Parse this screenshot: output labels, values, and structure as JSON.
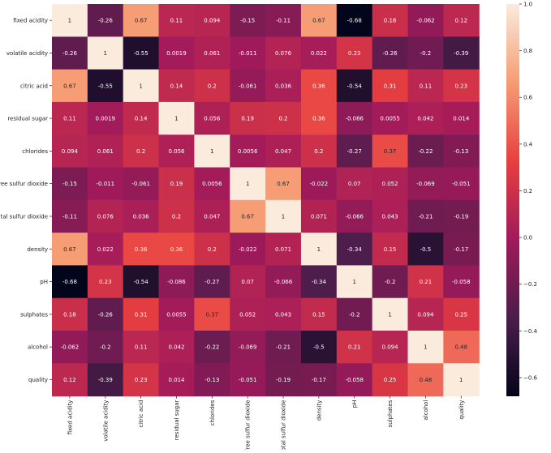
{
  "chart_data": {
    "type": "heatmap",
    "title": "",
    "xlabel": "",
    "ylabel": "",
    "rows": [
      "fixed acidity",
      "volatile acidity",
      "citric acid",
      "residual sugar",
      "chlorides",
      "free sulfur dioxide",
      "total sulfur dioxide",
      "density",
      "pH",
      "sulphates",
      "alcohol",
      "quality"
    ],
    "columns": [
      "fixed acidity",
      "volatile acidity",
      "citric acid",
      "residual sugar",
      "chlorides",
      "free sulfur dioxide",
      "total sulfur dioxide",
      "density",
      "pH",
      "sulphates",
      "alcohol",
      "quality"
    ],
    "values": [
      [
        1,
        -0.26,
        0.67,
        0.11,
        0.094,
        -0.15,
        -0.11,
        0.67,
        -0.68,
        0.18,
        -0.062,
        0.12
      ],
      [
        -0.26,
        1,
        -0.55,
        0.0019,
        0.061,
        -0.011,
        0.076,
        0.022,
        0.23,
        -0.26,
        -0.2,
        -0.39
      ],
      [
        0.67,
        -0.55,
        1,
        0.14,
        0.2,
        -0.061,
        0.036,
        0.36,
        -0.54,
        0.31,
        0.11,
        0.23
      ],
      [
        0.11,
        0.0019,
        0.14,
        1,
        0.056,
        0.19,
        0.2,
        0.36,
        -0.086,
        0.0055,
        0.042,
        0.014
      ],
      [
        0.094,
        0.061,
        0.2,
        0.056,
        1,
        0.0056,
        0.047,
        0.2,
        -0.27,
        0.37,
        -0.22,
        -0.13
      ],
      [
        -0.15,
        -0.011,
        -0.061,
        0.19,
        0.0056,
        1,
        0.67,
        -0.022,
        0.07,
        0.052,
        -0.069,
        -0.051
      ],
      [
        -0.11,
        0.076,
        0.036,
        0.2,
        0.047,
        0.67,
        1,
        0.071,
        -0.066,
        0.043,
        -0.21,
        -0.19
      ],
      [
        0.67,
        0.022,
        0.36,
        0.36,
        0.2,
        -0.022,
        0.071,
        1,
        -0.34,
        0.15,
        -0.5,
        -0.17
      ],
      [
        -0.68,
        0.23,
        -0.54,
        -0.086,
        -0.27,
        0.07,
        -0.066,
        -0.34,
        1,
        -0.2,
        0.21,
        -0.058
      ],
      [
        0.18,
        -0.26,
        0.31,
        0.0055,
        0.37,
        0.052,
        0.043,
        0.15,
        -0.2,
        1,
        0.094,
        0.25
      ],
      [
        -0.062,
        -0.2,
        0.11,
        0.042,
        -0.22,
        -0.069,
        -0.21,
        -0.5,
        0.21,
        0.094,
        1,
        0.48
      ],
      [
        0.12,
        -0.39,
        0.23,
        0.014,
        -0.13,
        -0.051,
        -0.19,
        -0.17,
        -0.058,
        0.25,
        0.48,
        1
      ]
    ],
    "value_labels": [
      [
        "1",
        "-0.26",
        "0.67",
        "0.11",
        "0.094",
        "-0.15",
        "-0.11",
        "0.67",
        "-0.68",
        "0.18",
        "-0.062",
        "0.12"
      ],
      [
        "-0.26",
        "1",
        "-0.55",
        "0.0019",
        "0.061",
        "-0.011",
        "0.076",
        "0.022",
        "0.23",
        "-0.26",
        "-0.2",
        "-0.39"
      ],
      [
        "0.67",
        "-0.55",
        "1",
        "0.14",
        "0.2",
        "-0.061",
        "0.036",
        "0.36",
        "-0.54",
        "0.31",
        "0.11",
        "0.23"
      ],
      [
        "0.11",
        "0.0019",
        "0.14",
        "1",
        "0.056",
        "0.19",
        "0.2",
        "0.36",
        "-0.086",
        "0.0055",
        "0.042",
        "0.014"
      ],
      [
        "0.094",
        "0.061",
        "0.2",
        "0.056",
        "1",
        "0.0056",
        "0.047",
        "0.2",
        "-0.27",
        "0.37",
        "-0.22",
        "-0.13"
      ],
      [
        "-0.15",
        "-0.011",
        "-0.061",
        "0.19",
        "0.0056",
        "1",
        "0.67",
        "-0.022",
        "0.07",
        "0.052",
        "-0.069",
        "-0.051"
      ],
      [
        "-0.11",
        "0.076",
        "0.036",
        "0.2",
        "0.047",
        "0.67",
        "1",
        "0.071",
        "-0.066",
        "0.043",
        "-0.21",
        "-0.19"
      ],
      [
        "0.67",
        "0.022",
        "0.36",
        "0.36",
        "0.2",
        "-0.022",
        "0.071",
        "1",
        "-0.34",
        "0.15",
        "-0.5",
        "-0.17"
      ],
      [
        "-0.68",
        "0.23",
        "-0.54",
        "-0.086",
        "-0.27",
        "0.07",
        "-0.066",
        "-0.34",
        "1",
        "-0.2",
        "0.21",
        "-0.058"
      ],
      [
        "0.18",
        "-0.26",
        "0.31",
        "0.0055",
        "0.37",
        "0.052",
        "0.043",
        "0.15",
        "-0.2",
        "1",
        "0.094",
        "0.25"
      ],
      [
        "-0.062",
        "-0.2",
        "0.11",
        "0.042",
        "-0.22",
        "-0.069",
        "-0.21",
        "-0.5",
        "0.21",
        "0.094",
        "1",
        "0.48"
      ],
      [
        "0.12",
        "-0.39",
        "0.23",
        "0.014",
        "-0.13",
        "-0.051",
        "-0.19",
        "-0.17",
        "-0.058",
        "0.25",
        "0.48",
        "1"
      ]
    ],
    "colorbar": {
      "vmin": -0.68,
      "vmax": 1,
      "ticks": [
        1.0,
        0.8,
        0.6,
        0.4,
        0.2,
        0.0,
        -0.2,
        -0.4,
        -0.6
      ],
      "tick_labels": [
        "1.0",
        "0.8",
        "0.6",
        "0.4",
        "0.2",
        "0.0",
        "−0.2",
        "−0.4",
        "−0.6"
      ],
      "colormap": "rocket",
      "colormap_stops": [
        "#03051a",
        "#4c1d4b",
        "#a11a5b",
        "#e83f3f",
        "#f69c73",
        "#faebdd"
      ]
    },
    "grid": false,
    "legend": "colorbar-right"
  }
}
